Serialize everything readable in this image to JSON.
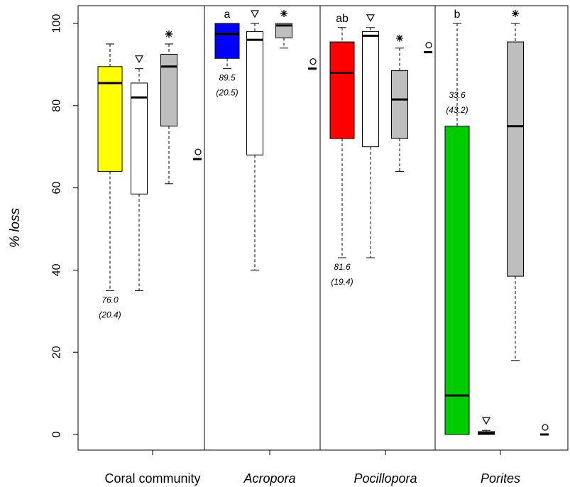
{
  "chart_data": {
    "type": "boxplot",
    "ylabel": "% loss",
    "ylim": [
      -4,
      104
    ],
    "yticks": [
      0,
      20,
      40,
      60,
      80,
      100
    ],
    "groups": [
      {
        "label": "Coral community",
        "italic": false,
        "annotation": {
          "mean": "76.0",
          "sd": "(20.4)"
        },
        "sig": "",
        "boxes": [
          {
            "fill": "#ffff00",
            "min": 35,
            "q1": 64,
            "median": 85.5,
            "q3": 89.5,
            "max": 95,
            "marker": ""
          },
          {
            "fill": "#ffffff",
            "min": 35,
            "q1": 58.5,
            "median": 82,
            "q3": 85.5,
            "max": 89,
            "marker": "triangle"
          },
          {
            "fill": "#bebebe",
            "min": 61,
            "q1": 75,
            "median": 89.5,
            "q3": 92.5,
            "max": 95,
            "marker": "star"
          },
          {
            "fill": "#ffffff",
            "min": 67,
            "q1": 67,
            "median": 67,
            "q3": 67,
            "max": 67,
            "marker": "circle"
          }
        ]
      },
      {
        "label": "Acropora",
        "italic": true,
        "annotation": {
          "mean": "89.5",
          "sd": "(20.5)"
        },
        "sig": "a",
        "boxes": [
          {
            "fill": "#0000ff",
            "min": 89,
            "q1": 91.5,
            "median": 97.5,
            "q3": 100,
            "max": 100,
            "marker": ""
          },
          {
            "fill": "#ffffff",
            "min": 40,
            "q1": 68,
            "median": 96,
            "q3": 98,
            "max": 100,
            "marker": "triangle"
          },
          {
            "fill": "#bebebe",
            "min": 94,
            "q1": 96.5,
            "median": 99.5,
            "q3": 100,
            "max": 100,
            "marker": "star"
          },
          {
            "fill": "#ffffff",
            "min": 89,
            "q1": 89,
            "median": 89,
            "q3": 89,
            "max": 89,
            "marker": "circle"
          }
        ]
      },
      {
        "label": "Pocillopora",
        "italic": true,
        "annotation": {
          "mean": "81.6",
          "sd": "(19.4)"
        },
        "sig": "ab",
        "boxes": [
          {
            "fill": "#ff0000",
            "min": 43,
            "q1": 72,
            "median": 88,
            "q3": 95.5,
            "max": 99,
            "marker": ""
          },
          {
            "fill": "#ffffff",
            "min": 43,
            "q1": 70,
            "median": 97,
            "q3": 98,
            "max": 99,
            "marker": "triangle"
          },
          {
            "fill": "#bebebe",
            "min": 64,
            "q1": 72,
            "median": 81.5,
            "q3": 88.5,
            "max": 94,
            "marker": "star"
          },
          {
            "fill": "#ffffff",
            "min": 93,
            "q1": 93,
            "median": 93,
            "q3": 93,
            "max": 93,
            "marker": "circle"
          }
        ]
      },
      {
        "label": "Porites",
        "italic": true,
        "annotation": {
          "mean": "33.6",
          "sd": "(43.2)"
        },
        "sig": "b",
        "boxes": [
          {
            "fill": "#00cc00",
            "min": 0,
            "q1": 0,
            "median": 9.5,
            "q3": 75,
            "max": 100,
            "marker": ""
          },
          {
            "fill": "#bebebe",
            "min": 0,
            "q1": 0,
            "median": 0.3,
            "q3": 0.7,
            "max": 1,
            "marker": "triangle"
          },
          {
            "fill": "#bebebe",
            "min": 18,
            "q1": 38.5,
            "median": 75,
            "q3": 95.5,
            "max": 100,
            "marker": "star"
          },
          {
            "fill": "#ffffff",
            "min": 0,
            "q1": 0,
            "median": 0,
            "q3": 0,
            "max": 0,
            "marker": "circle"
          }
        ]
      }
    ]
  }
}
